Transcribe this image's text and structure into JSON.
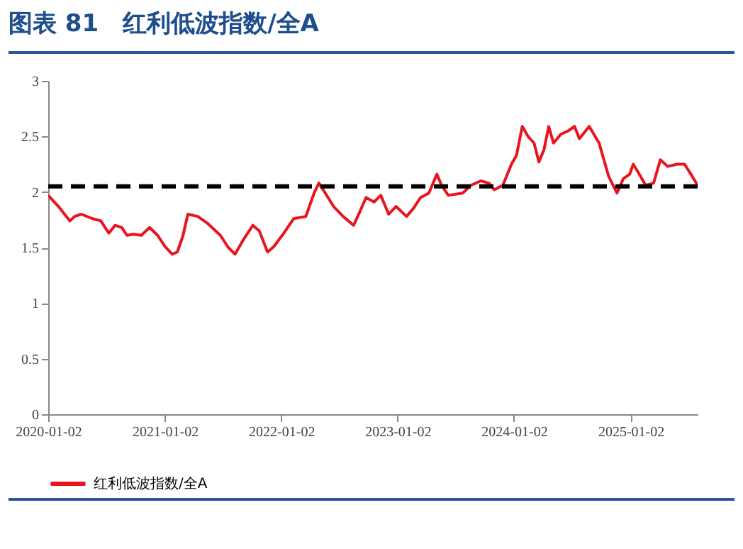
{
  "chart_data": {
    "type": "line",
    "title": "图表 81　红利低波指数/全A",
    "x": [
      "2020-01-02",
      "2020-02-03",
      "2020-03-10",
      "2020-03-25",
      "2020-04-15",
      "2020-05-20",
      "2020-06-15",
      "2020-07-10",
      "2020-07-30",
      "2020-08-20",
      "2020-09-05",
      "2020-09-25",
      "2020-10-20",
      "2020-11-15",
      "2020-12-10",
      "2021-01-02",
      "2021-01-25",
      "2021-02-10",
      "2021-02-28",
      "2021-03-15",
      "2021-04-15",
      "2021-05-15",
      "2021-06-25",
      "2021-07-20",
      "2021-08-10",
      "2021-09-05",
      "2021-10-05",
      "2021-10-25",
      "2021-11-20",
      "2021-12-10",
      "2022-01-05",
      "2022-02-10",
      "2022-03-20",
      "2022-04-15",
      "2022-04-30",
      "2022-05-20",
      "2022-06-15",
      "2022-07-15",
      "2022-08-17",
      "2022-09-05",
      "2022-09-25",
      "2022-10-20",
      "2022-11-10",
      "2022-12-05",
      "2022-12-28",
      "2023-01-30",
      "2023-02-20",
      "2023-03-15",
      "2023-04-10",
      "2023-05-05",
      "2023-05-20",
      "2023-06-10",
      "2023-07-25",
      "2023-08-20",
      "2023-09-20",
      "2023-10-15",
      "2023-11-01",
      "2023-11-28",
      "2023-12-25",
      "2024-01-10",
      "2024-01-28",
      "2024-02-15",
      "2024-03-05",
      "2024-03-20",
      "2024-04-05",
      "2024-04-20",
      "2024-05-05",
      "2024-05-28",
      "2024-06-20",
      "2024-07-10",
      "2024-07-25",
      "2024-08-25",
      "2024-09-25",
      "2024-10-10",
      "2024-10-25",
      "2024-11-20",
      "2024-12-10",
      "2024-12-30",
      "2025-01-10",
      "2025-01-25",
      "2025-02-18",
      "2025-03-15",
      "2025-04-05",
      "2025-04-28",
      "2025-05-27",
      "2025-06-20",
      "2025-07-10",
      "2025-07-31"
    ],
    "series": [
      {
        "name": "红利低波指数/全A",
        "color": "#e8141e",
        "values": [
          1.97,
          1.87,
          1.74,
          1.78,
          1.8,
          1.76,
          1.74,
          1.63,
          1.7,
          1.68,
          1.61,
          1.62,
          1.61,
          1.68,
          1.61,
          1.51,
          1.44,
          1.46,
          1.61,
          1.8,
          1.78,
          1.72,
          1.61,
          1.5,
          1.44,
          1.57,
          1.7,
          1.65,
          1.46,
          1.51,
          1.61,
          1.76,
          1.78,
          1.99,
          2.08,
          1.99,
          1.87,
          1.78,
          1.7,
          1.82,
          1.95,
          1.91,
          1.97,
          1.8,
          1.87,
          1.78,
          1.85,
          1.95,
          1.99,
          2.16,
          2.06,
          1.97,
          1.99,
          2.06,
          2.1,
          2.08,
          2.02,
          2.06,
          2.25,
          2.33,
          2.59,
          2.5,
          2.44,
          2.27,
          2.38,
          2.59,
          2.44,
          2.52,
          2.55,
          2.59,
          2.48,
          2.59,
          2.44,
          2.29,
          2.14,
          1.99,
          2.12,
          2.16,
          2.25,
          2.18,
          2.06,
          2.08,
          2.29,
          2.23,
          2.25,
          2.25,
          2.16,
          2.06
        ]
      }
    ],
    "xlim": [
      "2020-01-02",
      "2025-07-31"
    ],
    "xticks": [
      "2020-01-02",
      "2021-01-02",
      "2022-01-02",
      "2023-01-02",
      "2024-01-02",
      "2025-01-02"
    ],
    "ylim": [
      0,
      3
    ],
    "yticks": [
      0,
      0.5,
      1,
      1.5,
      2,
      2.5,
      3
    ],
    "ref_lines": [
      {
        "axis": "y",
        "value": 2.05,
        "color": "#000000",
        "line_style": "dashed"
      }
    ],
    "grid": false,
    "legend": "bottom"
  }
}
